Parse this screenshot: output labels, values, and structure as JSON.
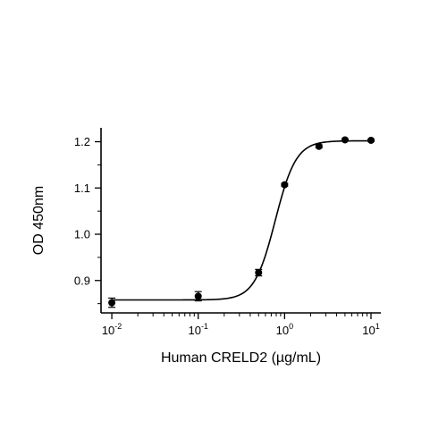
{
  "chart_data": {
    "type": "scatter",
    "title": "",
    "xlabel": "Human CRELD2 (µg/mL)",
    "ylabel": "OD 450nm",
    "x_scale": "log",
    "xlim": [
      0.0075,
      13
    ],
    "ylim": [
      0.83,
      1.23
    ],
    "x_ticks": [
      {
        "value": 0.01,
        "base": "10",
        "exp": "-2"
      },
      {
        "value": 0.1,
        "base": "10",
        "exp": "-1"
      },
      {
        "value": 1,
        "base": "10",
        "exp": "0"
      },
      {
        "value": 10,
        "base": "10",
        "exp": "1"
      }
    ],
    "y_ticks": [
      {
        "value": 0.9,
        "label": "0.9"
      },
      {
        "value": 1.0,
        "label": "1.0"
      },
      {
        "value": 1.1,
        "label": "1.1"
      },
      {
        "value": 1.2,
        "label": "1.2"
      }
    ],
    "grid": false,
    "series": [
      {
        "points": [
          {
            "x": 0.01,
            "y": 0.852,
            "err": 0.01
          },
          {
            "x": 0.1,
            "y": 0.866,
            "err": 0.01
          },
          {
            "x": 0.5,
            "y": 0.917,
            "err": 0.007
          },
          {
            "x": 1.0,
            "y": 1.107,
            "err": 0.003
          },
          {
            "x": 2.5,
            "y": 1.19,
            "err": 0.003
          },
          {
            "x": 5.0,
            "y": 1.204,
            "err": 0.002
          },
          {
            "x": 10.0,
            "y": 1.203,
            "err": 0.002
          }
        ],
        "fit": {
          "model": "4PL",
          "bottom": 0.858,
          "top": 1.202,
          "ec50": 0.78,
          "hill": 3.6
        }
      }
    ]
  }
}
